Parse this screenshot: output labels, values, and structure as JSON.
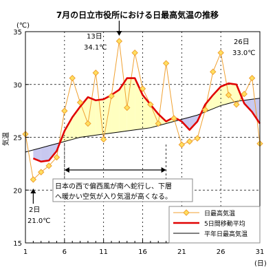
{
  "chart_data": {
    "type": "line",
    "title": "7月の日立市役所における日最高気温の推移",
    "y_unit_label": "(℃)",
    "ylabel": "気温",
    "x_unit_label": "(日)",
    "ylim": [
      15,
      35
    ],
    "xlim": [
      1,
      31
    ],
    "y_ticks": [
      15,
      20,
      25,
      30,
      35
    ],
    "y_tick_labels": [
      "15",
      "20",
      "25",
      "30",
      "35"
    ],
    "x_ticks": [
      1,
      6,
      11,
      16,
      21,
      26,
      31
    ],
    "x_tick_labels": [
      "1",
      "6",
      "11",
      "16",
      "21",
      "26",
      "31"
    ],
    "y_dashed_gridlines": [
      20,
      25,
      30
    ],
    "x_dashed_gridlines": [
      6,
      11,
      16,
      21,
      26
    ],
    "x": [
      1,
      2,
      3,
      4,
      5,
      6,
      7,
      8,
      9,
      10,
      11,
      12,
      13,
      14,
      15,
      16,
      17,
      18,
      19,
      20,
      21,
      22,
      23,
      24,
      25,
      26,
      27,
      28,
      29,
      30,
      31
    ],
    "series": [
      {
        "name": "日最高気温",
        "color": "#f0a030",
        "marker_fill": "#ffe060",
        "values": [
          25.3,
          21.0,
          21.7,
          22.3,
          23.1,
          27.5,
          30.6,
          28.3,
          26.3,
          31.1,
          24.8,
          28.9,
          34.1,
          27.8,
          33.0,
          29.6,
          28.1,
          26.3,
          32.0,
          26.8,
          24.3,
          24.6,
          24.9,
          27.6,
          31.2,
          33.0,
          29.0,
          28.1,
          29.1,
          30.6,
          24.4
        ]
      },
      {
        "name": "5日間移動平均",
        "color": "#e00000",
        "values": [
          null,
          23.0,
          22.7,
          22.8,
          23.7,
          25.6,
          26.9,
          27.9,
          28.8,
          28.5,
          28.6,
          29.0,
          29.5,
          30.6,
          30.6,
          29.0,
          28.1,
          27.2,
          26.5,
          26.9,
          26.5,
          25.7,
          26.5,
          28.1,
          29.0,
          29.8,
          30.1,
          30.0,
          28.2,
          27.4,
          26.3
        ]
      },
      {
        "name": "平年日最高気温",
        "color": "#000000",
        "values": [
          23.6,
          23.8,
          24.0,
          24.2,
          24.4,
          24.6,
          24.8,
          25.0,
          25.1,
          25.2,
          25.3,
          25.4,
          25.5,
          25.6,
          25.7,
          25.8,
          25.9,
          26.1,
          26.3,
          26.5,
          26.7,
          26.9,
          27.1,
          27.4,
          27.7,
          28.0,
          28.2,
          28.4,
          28.5,
          28.6,
          28.7
        ]
      }
    ],
    "fill_above_normal_color": "#ffffc0",
    "fill_below_normal_color": "#c8c8f0",
    "annotations": {
      "peak13": {
        "day_label": "13日",
        "temp_label": "34.1℃"
      },
      "peak26": {
        "day_label": "26日",
        "temp_label": "33.0℃"
      },
      "low2": {
        "day_label": "2日",
        "temp_label": "21.0℃"
      },
      "span_note": {
        "line1": "日本の西で偏西風が南へ蛇行し、下層",
        "line2": "へ暖かい空気が入り気温が高くなる。"
      },
      "span_days": [
        6,
        19
      ]
    },
    "legend_position": "bottom-right"
  }
}
